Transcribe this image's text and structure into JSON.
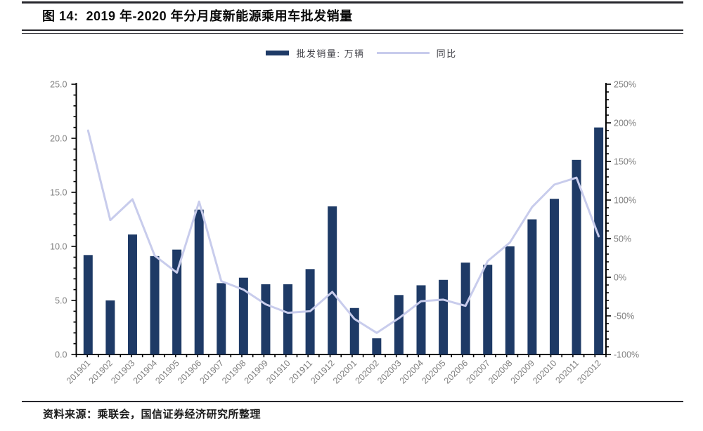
{
  "page": {
    "title": "图 14:  2019 年-2020 年分月度新能源乘用车批发销量",
    "source": "资料来源：乘联会，国信证券经济研究所整理"
  },
  "legend": {
    "bar_label": "批发销量: 万辆",
    "line_label": "同比"
  },
  "colors": {
    "bar": "#1e3a66",
    "line": "#c8ccec",
    "axis": "#000000",
    "tick_label": "#7f7f7f",
    "legend_text": "#3f3f46",
    "rule": "#26262c"
  },
  "chart_data": {
    "type": "bar+line",
    "title": "2019 年-2020 年分月度新能源乘用车批发销量",
    "categories": [
      "201901",
      "201902",
      "201903",
      "201904",
      "201905",
      "201906",
      "201907",
      "201908",
      "201909",
      "201910",
      "201911",
      "201912",
      "202001",
      "202002",
      "202003",
      "202004",
      "202005",
      "202006",
      "202007",
      "202008",
      "202009",
      "202010",
      "202011",
      "202012"
    ],
    "series": [
      {
        "name": "批发销量: 万辆",
        "type": "bar",
        "axis": "left",
        "unit": "万辆",
        "values": [
          9.2,
          5.0,
          11.1,
          9.1,
          9.7,
          13.4,
          6.6,
          7.1,
          6.5,
          6.5,
          7.9,
          13.7,
          4.3,
          1.5,
          5.5,
          6.4,
          6.9,
          8.5,
          8.3,
          10.0,
          12.5,
          14.4,
          18.0,
          21.0
        ]
      },
      {
        "name": "同比",
        "type": "line",
        "axis": "right",
        "unit": "%",
        "values": [
          190,
          74,
          101,
          28,
          6,
          98,
          -5,
          -16,
          -35,
          -46,
          -44,
          -19,
          -54,
          -72,
          -53,
          -31,
          -29,
          -37,
          21,
          45,
          91,
          120,
          129,
          53
        ]
      }
    ],
    "left_axis": {
      "min": 0,
      "max": 25,
      "major_step": 5,
      "minor_step": 1,
      "ticks": [
        "25.0",
        "20.0",
        "15.0",
        "10.0",
        "5.0",
        "0.0"
      ]
    },
    "right_axis": {
      "min": -100,
      "max": 250,
      "major_step": 50,
      "minor_step": 10,
      "ticks": [
        "250%",
        "200%",
        "150%",
        "100%",
        "50%",
        "0%",
        "-50%",
        "-100%"
      ]
    },
    "grid": false,
    "legend_position": "top-center"
  }
}
